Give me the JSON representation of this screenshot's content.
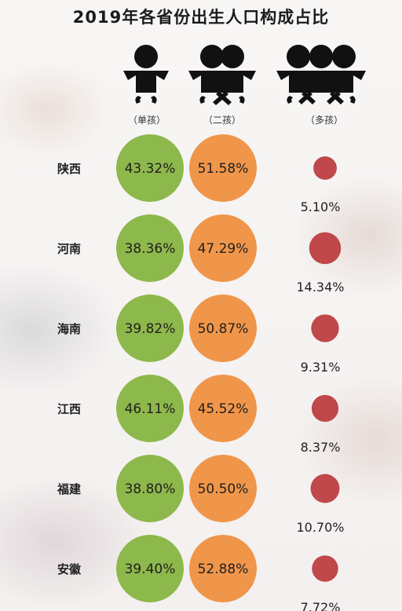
{
  "title": "2019年各省份出生人口构成占比",
  "categories_header": [
    "（单孩）",
    "（二孩）",
    "（多孩）"
  ],
  "colors": {
    "single": "#8db84b",
    "second": "#f0964a",
    "multi": "#c0474a"
  },
  "chart_data": {
    "type": "bubble-table",
    "title": "2019年各省份出生人口构成占比",
    "categories": [
      "陕西",
      "河南",
      "海南",
      "江西",
      "福建",
      "安徽"
    ],
    "series": [
      {
        "name": "（单孩）",
        "values": [
          43.32,
          38.36,
          39.82,
          46.11,
          38.8,
          39.4
        ]
      },
      {
        "name": "（二孩）",
        "values": [
          51.58,
          47.29,
          50.87,
          45.52,
          50.5,
          52.88
        ]
      },
      {
        "name": "（多孩）",
        "values": [
          5.1,
          14.34,
          9.31,
          8.37,
          10.7,
          7.72
        ]
      }
    ],
    "value_labels": [
      [
        "43.32%",
        "51.58%",
        "5.10%"
      ],
      [
        "38.36%",
        "47.29%",
        "14.34%"
      ],
      [
        "39.82%",
        "50.87%",
        "9.31%"
      ],
      [
        "46.11%",
        "45.52%",
        "8.37%"
      ],
      [
        "38.80%",
        "50.50%",
        "10.70%"
      ],
      [
        "39.40%",
        "52.88%",
        "7.72%"
      ]
    ],
    "unit": "%"
  }
}
